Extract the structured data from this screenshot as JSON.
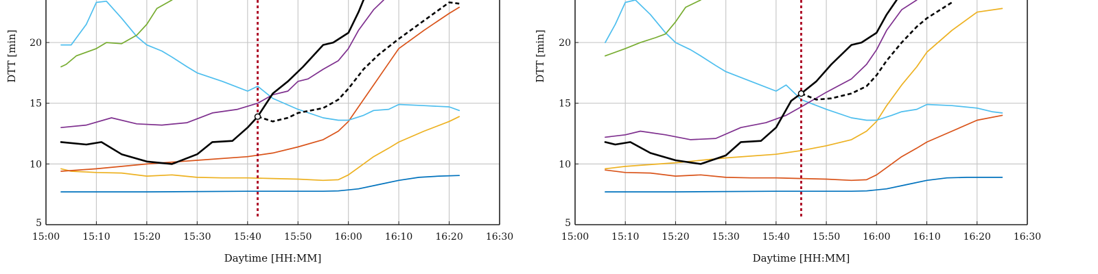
{
  "chart_data": [
    {
      "type": "line",
      "xlabel": "Daytime [HH:MM]",
      "ylabel": "DTT [min]",
      "xlim": [
        900,
        990
      ],
      "ylim": [
        5,
        23.5
      ],
      "x_ticks": [
        900,
        910,
        920,
        930,
        940,
        950,
        960,
        970,
        980,
        990
      ],
      "x_tick_labels": [
        "15:00",
        "15:10",
        "15:20",
        "15:30",
        "15:40",
        "15:50",
        "16:00",
        "16:10",
        "16:20",
        "16:30"
      ],
      "y_ticks": [
        5,
        10,
        15,
        20
      ],
      "y_tick_labels": [
        "5",
        "10",
        "15",
        "20"
      ],
      "grid": true,
      "vline": {
        "x": 942,
        "color": "#b0142c",
        "style": "dotted"
      },
      "marker": {
        "x": 942,
        "y": 13.9
      },
      "series": [
        {
          "color": "#0072bd",
          "x": [
            903,
            920,
            940,
            955,
            958,
            962,
            966,
            970,
            974,
            978,
            982
          ],
          "y": [
            7.7,
            7.7,
            7.75,
            7.75,
            7.78,
            7.95,
            8.3,
            8.65,
            8.9,
            9.0,
            9.05
          ]
        },
        {
          "color": "#edb120",
          "x": [
            903,
            905,
            910,
            915,
            920,
            925,
            930,
            935,
            940,
            945,
            950,
            955,
            958,
            960,
            962,
            965,
            968,
            970,
            975,
            980,
            982
          ],
          "y": [
            9.6,
            9.4,
            9.3,
            9.25,
            9.0,
            9.1,
            8.9,
            8.85,
            8.85,
            8.8,
            8.75,
            8.65,
            8.7,
            9.1,
            9.7,
            10.6,
            11.3,
            11.8,
            12.7,
            13.5,
            13.9
          ]
        },
        {
          "color": "#d95319",
          "x": [
            903,
            910,
            920,
            930,
            940,
            945,
            950,
            955,
            958,
            960,
            962,
            965,
            968,
            970,
            975,
            980,
            982
          ],
          "y": [
            9.4,
            9.6,
            10.0,
            10.3,
            10.6,
            10.9,
            11.4,
            12.0,
            12.7,
            13.5,
            14.7,
            16.5,
            18.3,
            19.5,
            21.0,
            22.4,
            22.9
          ]
        },
        {
          "color": "#4dbeee",
          "x": [
            903,
            905,
            908,
            910,
            912,
            915,
            918,
            920,
            923,
            925,
            928,
            930,
            935,
            940,
            942,
            945,
            950,
            955,
            958,
            960,
            963,
            965,
            968,
            970,
            975,
            980,
            982
          ],
          "y": [
            19.8,
            19.8,
            21.5,
            23.3,
            23.4,
            22.0,
            20.5,
            19.8,
            19.3,
            18.8,
            18.0,
            17.5,
            16.8,
            16.0,
            16.4,
            15.4,
            14.5,
            13.8,
            13.6,
            13.6,
            14.0,
            14.4,
            14.5,
            14.9,
            14.8,
            14.7,
            14.4
          ]
        },
        {
          "color": "#77ac30",
          "x": [
            903,
            904,
            906,
            910,
            912,
            915,
            918,
            920,
            922,
            925
          ],
          "y": [
            18.0,
            18.2,
            18.9,
            19.5,
            20.0,
            19.9,
            20.6,
            21.5,
            22.8,
            23.5
          ]
        },
        {
          "color": "#7e2f8e",
          "x": [
            903,
            908,
            913,
            918,
            923,
            928,
            933,
            938,
            942,
            945,
            948,
            950,
            952,
            955,
            958,
            960,
            962,
            965,
            967
          ],
          "y": [
            13.0,
            13.2,
            13.8,
            13.3,
            13.2,
            13.4,
            14.2,
            14.5,
            15.0,
            15.7,
            16.0,
            16.8,
            17.0,
            17.8,
            18.5,
            19.5,
            21.0,
            22.7,
            23.5
          ]
        },
        {
          "color": "#000000",
          "style": "solid",
          "width": 2.6,
          "x": [
            903,
            908,
            911,
            915,
            920,
            925,
            930,
            933,
            937,
            940,
            942,
            945,
            948,
            951,
            955,
            957,
            960,
            962,
            963
          ],
          "y": [
            11.8,
            11.6,
            11.8,
            10.8,
            10.2,
            10.0,
            10.8,
            11.8,
            11.9,
            13.0,
            13.9,
            15.8,
            16.8,
            18.0,
            19.8,
            20.0,
            20.8,
            22.5,
            23.5
          ]
        },
        {
          "color": "#000000",
          "style": "dashed",
          "width": 2.6,
          "x": [
            942,
            945,
            948,
            950,
            955,
            958,
            960,
            963,
            966,
            970,
            975,
            980,
            982
          ],
          "y": [
            13.9,
            13.5,
            13.8,
            14.2,
            14.6,
            15.3,
            16.2,
            17.8,
            19.0,
            20.3,
            21.8,
            23.3,
            23.2
          ]
        }
      ]
    },
    {
      "type": "line",
      "xlabel": "Daytime [HH:MM]",
      "ylabel": "DTT [min]",
      "xlim": [
        900,
        990
      ],
      "ylim": [
        5,
        23.5
      ],
      "x_ticks": [
        900,
        910,
        920,
        930,
        940,
        950,
        960,
        970,
        980,
        990
      ],
      "x_tick_labels": [
        "15:00",
        "15:10",
        "15:20",
        "15:30",
        "15:40",
        "15:50",
        "16:00",
        "16:10",
        "16:20",
        "16:30"
      ],
      "y_ticks": [
        5,
        10,
        15,
        20
      ],
      "y_tick_labels": [
        "5",
        "10",
        "15",
        "20"
      ],
      "grid": true,
      "vline": {
        "x": 945,
        "color": "#b0142c",
        "style": "dotted"
      },
      "marker": {
        "x": 945,
        "y": 15.8
      },
      "series": [
        {
          "color": "#0072bd",
          "x": [
            906,
            920,
            940,
            955,
            958,
            962,
            966,
            970,
            974,
            978,
            985
          ],
          "y": [
            7.7,
            7.7,
            7.75,
            7.75,
            7.78,
            7.95,
            8.3,
            8.65,
            8.85,
            8.9,
            8.9
          ]
        },
        {
          "color": "#d95319",
          "x": [
            906,
            910,
            915,
            920,
            925,
            930,
            935,
            940,
            945,
            950,
            955,
            958,
            960,
            962,
            965,
            968,
            970,
            975,
            980,
            985
          ],
          "y": [
            9.5,
            9.3,
            9.25,
            9.0,
            9.1,
            8.9,
            8.85,
            8.85,
            8.8,
            8.75,
            8.65,
            8.7,
            9.1,
            9.7,
            10.6,
            11.3,
            11.8,
            12.7,
            13.6,
            14.0
          ]
        },
        {
          "color": "#edb120",
          "x": [
            906,
            910,
            920,
            930,
            940,
            945,
            950,
            955,
            958,
            960,
            962,
            965,
            968,
            970,
            975,
            980,
            985
          ],
          "y": [
            9.6,
            9.8,
            10.1,
            10.5,
            10.8,
            11.1,
            11.5,
            12.0,
            12.7,
            13.5,
            14.8,
            16.5,
            18.0,
            19.2,
            21.0,
            22.5,
            22.8
          ]
        },
        {
          "color": "#4dbeee",
          "x": [
            906,
            908,
            910,
            912,
            915,
            918,
            920,
            923,
            925,
            928,
            930,
            935,
            940,
            942,
            945,
            950,
            955,
            958,
            960,
            963,
            965,
            968,
            970,
            975,
            980,
            983,
            985
          ],
          "y": [
            20.0,
            21.5,
            23.3,
            23.5,
            22.3,
            20.8,
            20.0,
            19.4,
            18.9,
            18.1,
            17.6,
            16.8,
            16.0,
            16.5,
            15.3,
            14.5,
            13.8,
            13.6,
            13.6,
            14.0,
            14.3,
            14.5,
            14.9,
            14.8,
            14.6,
            14.3,
            14.2
          ]
        },
        {
          "color": "#77ac30",
          "x": [
            906,
            910,
            913,
            916,
            918,
            920,
            922,
            925
          ],
          "y": [
            18.9,
            19.5,
            20.0,
            20.4,
            20.7,
            21.7,
            22.9,
            23.5
          ]
        },
        {
          "color": "#7e2f8e",
          "x": [
            906,
            910,
            913,
            918,
            923,
            928,
            933,
            938,
            942,
            945,
            950,
            955,
            958,
            960,
            962,
            965,
            968
          ],
          "y": [
            12.2,
            12.4,
            12.7,
            12.4,
            12.0,
            12.1,
            13.0,
            13.4,
            14.0,
            14.7,
            15.9,
            17.0,
            18.2,
            19.4,
            21.0,
            22.7,
            23.5
          ]
        },
        {
          "color": "#000000",
          "style": "solid",
          "width": 2.6,
          "x": [
            906,
            908,
            911,
            915,
            920,
            925,
            930,
            933,
            937,
            940,
            943,
            945,
            948,
            951,
            955,
            957,
            960,
            962,
            964
          ],
          "y": [
            11.8,
            11.6,
            11.8,
            10.9,
            10.3,
            10.0,
            10.7,
            11.8,
            11.9,
            13.0,
            15.2,
            15.8,
            16.8,
            18.2,
            19.8,
            20.0,
            20.8,
            22.3,
            23.5
          ]
        },
        {
          "color": "#000000",
          "style": "dashed",
          "width": 2.6,
          "x": [
            945,
            948,
            951,
            955,
            958,
            960,
            962,
            965,
            968,
            970,
            975
          ],
          "y": [
            15.8,
            15.3,
            15.4,
            15.8,
            16.4,
            17.3,
            18.5,
            20.0,
            21.3,
            22.0,
            23.3
          ]
        }
      ]
    }
  ]
}
